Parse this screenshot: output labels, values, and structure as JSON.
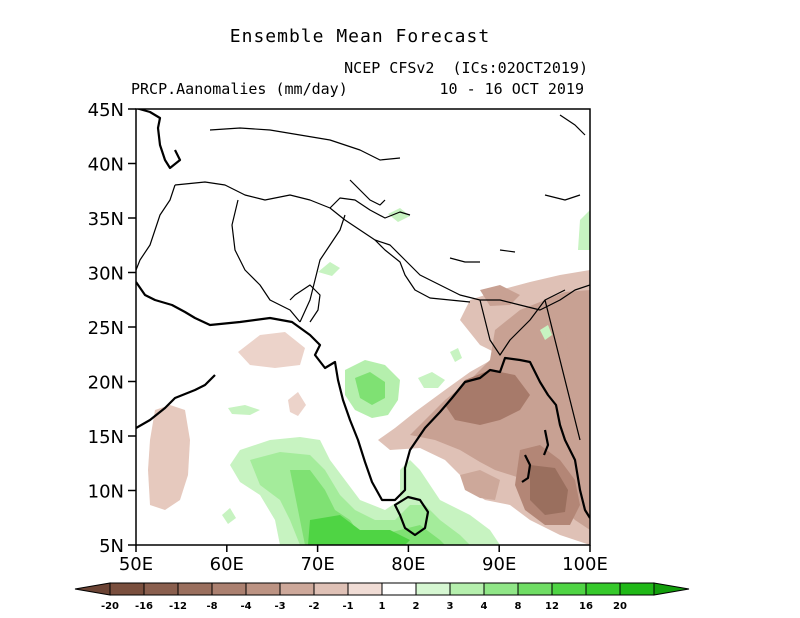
{
  "header": {
    "title": "Ensemble Mean Forecast",
    "model": "NCEP CFSv2  (ICs:02OCT2019)",
    "variable": "PRCP.Aanomalies (mm/day)",
    "dates": "10 - 16 OCT 2019"
  },
  "axes": {
    "lat_ticks": [
      "45N",
      "40N",
      "35N",
      "30N",
      "25N",
      "20N",
      "15N",
      "10N",
      "5N"
    ],
    "lon_ticks": [
      "50E",
      "60E",
      "70E",
      "80E",
      "90E",
      "100E"
    ]
  },
  "colorbar": {
    "labels": [
      "-20",
      "-16",
      "-12",
      "-8",
      "-4",
      "-3",
      "-2",
      "-1",
      "1",
      "2",
      "3",
      "4",
      "8",
      "12",
      "16",
      "20"
    ],
    "colors": [
      "#7a4f3e",
      "#8a5f4e",
      "#9a6f5e",
      "#ab8070",
      "#bc9383",
      "#cda89a",
      "#dfc1b6",
      "#f0dcd5",
      "#ffffff",
      "#d6f7d2",
      "#b5efad",
      "#90e687",
      "#6fdd64",
      "#4fd444",
      "#36c92b",
      "#20b817"
    ],
    "end_low": "#6b4334",
    "end_high": "#139e0c"
  }
}
